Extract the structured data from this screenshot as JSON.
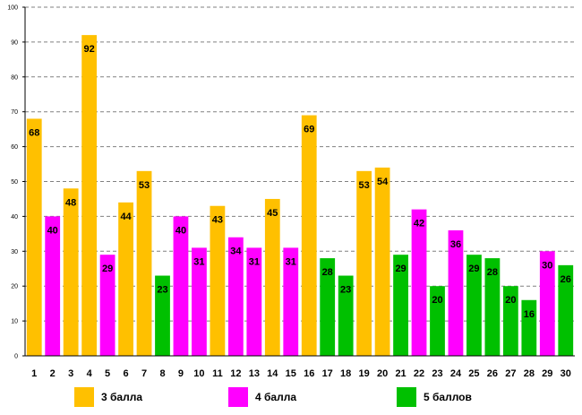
{
  "chart_data": {
    "type": "bar",
    "categories": [
      "1",
      "2",
      "3",
      "4",
      "5",
      "6",
      "7",
      "8",
      "9",
      "10",
      "11",
      "12",
      "13",
      "14",
      "15",
      "16",
      "17",
      "18",
      "19",
      "20",
      "21",
      "22",
      "23",
      "24",
      "25",
      "26",
      "27",
      "28",
      "29",
      "30"
    ],
    "values": [
      68,
      40,
      48,
      92,
      29,
      44,
      53,
      23,
      40,
      31,
      43,
      34,
      31,
      45,
      31,
      69,
      28,
      23,
      53,
      54,
      29,
      42,
      20,
      36,
      29,
      28,
      20,
      16,
      30,
      26
    ],
    "groups": [
      "3",
      "4",
      "3",
      "3",
      "4",
      "3",
      "3",
      "5",
      "4",
      "4",
      "3",
      "4",
      "4",
      "3",
      "4",
      "3",
      "5",
      "5",
      "3",
      "3",
      "5",
      "4",
      "5",
      "4",
      "5",
      "5",
      "5",
      "5",
      "4",
      "5"
    ],
    "ylim": [
      0,
      100
    ],
    "ytick_step": 10,
    "grid": true,
    "title": "",
    "xlabel": "",
    "ylabel": "",
    "legend": [
      {
        "key": "3",
        "label": "3 балла",
        "color": "#FFC000"
      },
      {
        "key": "4",
        "label": "4 балла",
        "color": "#FF00FF"
      },
      {
        "key": "5",
        "label": "5 баллов",
        "color": "#00C000"
      }
    ],
    "legend_position": "bottom"
  },
  "colors": {
    "grid": "#808080",
    "axis": "#000000"
  }
}
